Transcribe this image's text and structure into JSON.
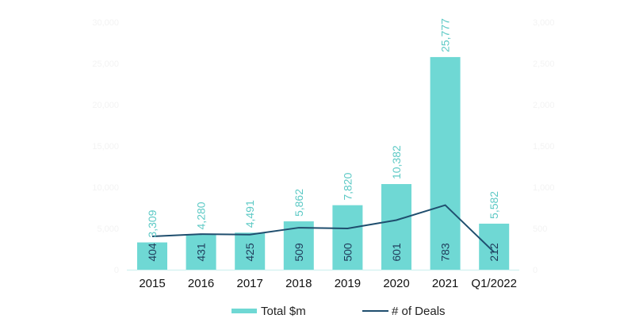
{
  "chart_data": {
    "type": "bar",
    "title": "",
    "xlabel": "",
    "ylabel": "",
    "categories": [
      "2015",
      "2016",
      "2017",
      "2018",
      "2019",
      "2020",
      "2021",
      "Q1/2022"
    ],
    "series": [
      {
        "name": "Total $m",
        "type": "bar",
        "axis": "left",
        "color": "#6fd8d4",
        "values": [
          3309,
          4280,
          4491,
          5862,
          7820,
          10382,
          25777,
          5582
        ],
        "labels": [
          "3,309",
          "4,280",
          "4,491",
          "5,862",
          "7,820",
          "10,382",
          "25,777",
          "5,582"
        ]
      },
      {
        "name": "# of Deals",
        "type": "line",
        "axis": "right",
        "color": "#1f4e6e",
        "values": [
          404,
          431,
          425,
          509,
          500,
          601,
          783,
          212
        ],
        "labels": [
          "404",
          "431",
          "425",
          "509",
          "500",
          "601",
          "783",
          "212"
        ]
      }
    ],
    "ylim": [
      0,
      30000
    ],
    "y2lim": [
      0,
      3000
    ],
    "yticks": [
      "0",
      "5,000",
      "10,000",
      "15,000",
      "20,000",
      "25,000",
      "30,000"
    ],
    "y2ticks": [
      "0",
      "500",
      "1,000",
      "1,500",
      "2,000",
      "2,500",
      "3,000"
    ],
    "grid": false,
    "legend": "bottom-center"
  }
}
